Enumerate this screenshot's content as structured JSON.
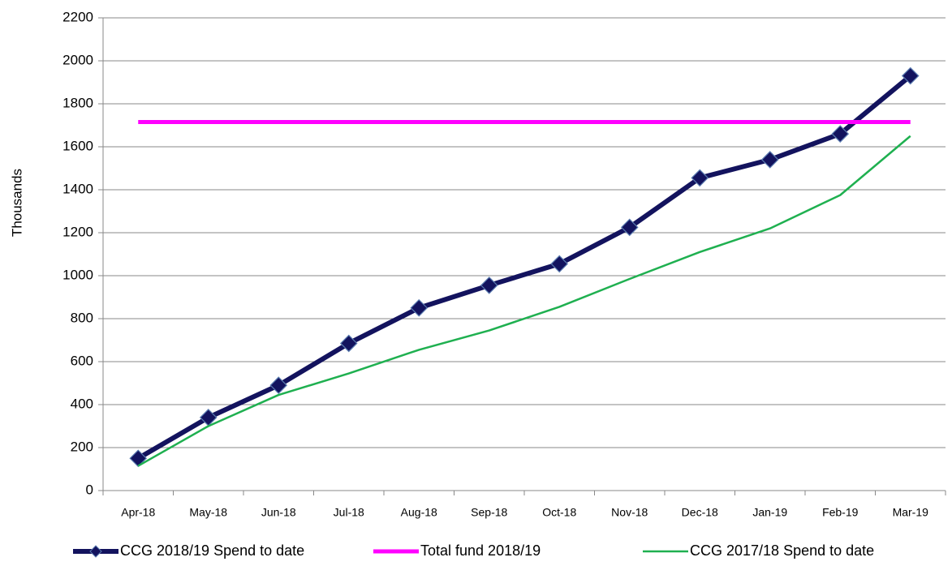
{
  "chart_data": {
    "type": "line",
    "y_label": "Thousands",
    "categories": [
      "Apr-18",
      "May-18",
      "Jun-18",
      "Jul-18",
      "Aug-18",
      "Sep-18",
      "Oct-18",
      "Nov-18",
      "Dec-18",
      "Jan-19",
      "Feb-19",
      "Mar-19"
    ],
    "series": [
      {
        "name": "CCG 2018/19 Spend to date",
        "color": "#13135e",
        "marker": "diamond",
        "values": [
          150,
          340,
          490,
          685,
          850,
          955,
          1055,
          1225,
          1455,
          1540,
          1660,
          1930
        ]
      },
      {
        "name": "Total fund 2018/19",
        "color": "#ff00ff",
        "values": [
          1715,
          1715,
          1715,
          1715,
          1715,
          1715,
          1715,
          1715,
          1715,
          1715,
          1715,
          1715
        ]
      },
      {
        "name": "CCG 2017/18 Spend to date",
        "color": "#1fb050",
        "values": [
          115,
          300,
          445,
          545,
          655,
          745,
          855,
          985,
          1110,
          1220,
          1375,
          1650
        ]
      }
    ],
    "ylim": [
      0,
      2200
    ],
    "yticks": [
      0,
      200,
      400,
      600,
      800,
      1000,
      1200,
      1400,
      1600,
      1800,
      2000,
      2200
    ],
    "grid": true,
    "legend": "bottom"
  }
}
